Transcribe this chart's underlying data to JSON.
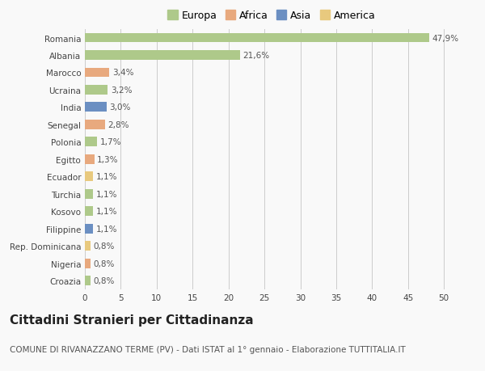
{
  "countries": [
    "Romania",
    "Albania",
    "Marocco",
    "Ucraina",
    "India",
    "Senegal",
    "Polonia",
    "Egitto",
    "Ecuador",
    "Turchia",
    "Kosovo",
    "Filippine",
    "Rep. Dominicana",
    "Nigeria",
    "Croazia"
  ],
  "values": [
    47.9,
    21.6,
    3.4,
    3.2,
    3.0,
    2.8,
    1.7,
    1.3,
    1.1,
    1.1,
    1.1,
    1.1,
    0.8,
    0.8,
    0.8
  ],
  "labels": [
    "47,9%",
    "21,6%",
    "3,4%",
    "3,2%",
    "3,0%",
    "2,8%",
    "1,7%",
    "1,3%",
    "1,1%",
    "1,1%",
    "1,1%",
    "1,1%",
    "0,8%",
    "0,8%",
    "0,8%"
  ],
  "continents": [
    "Europa",
    "Europa",
    "Africa",
    "Europa",
    "Asia",
    "Africa",
    "Europa",
    "Africa",
    "America",
    "Europa",
    "Europa",
    "Asia",
    "America",
    "Africa",
    "Europa"
  ],
  "continent_colors": {
    "Europa": "#aec98a",
    "Africa": "#e8a97e",
    "Asia": "#6b8fc2",
    "America": "#e8c97e"
  },
  "legend_order": [
    "Europa",
    "Africa",
    "Asia",
    "America"
  ],
  "legend_colors": [
    "#aec98a",
    "#e8a97e",
    "#6b8fc2",
    "#e8c97e"
  ],
  "xlim": [
    0,
    52
  ],
  "xticks": [
    0,
    5,
    10,
    15,
    20,
    25,
    30,
    35,
    40,
    45,
    50
  ],
  "title": "Cittadini Stranieri per Cittadinanza",
  "subtitle": "COMUNE DI RIVANAZZANO TERME (PV) - Dati ISTAT al 1° gennaio - Elaborazione TUTTITALIA.IT",
  "background_color": "#f9f9f9",
  "grid_color": "#cccccc",
  "bar_height": 0.55,
  "title_fontsize": 11,
  "subtitle_fontsize": 7.5,
  "label_fontsize": 7.5,
  "tick_fontsize": 7.5,
  "legend_fontsize": 9
}
